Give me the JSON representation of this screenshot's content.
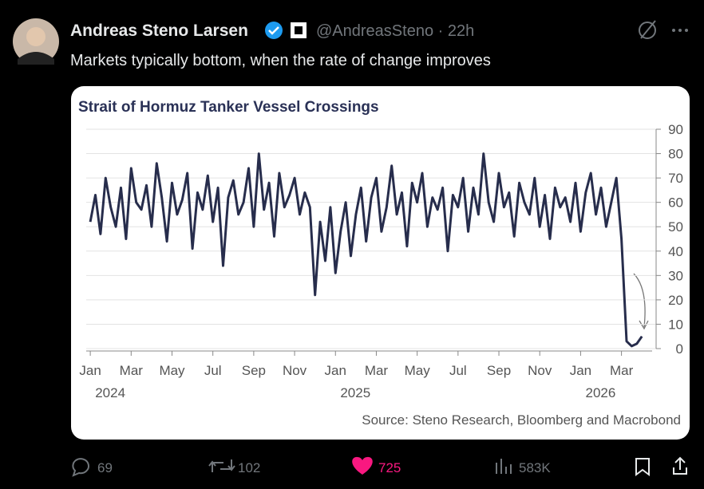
{
  "tweet": {
    "author": "Andreas Steno Larsen",
    "handle_line": "@AndreasSteno · 22h",
    "text": "Markets typically bottom, when the rate of change improves",
    "replies": "69",
    "retweets": "102",
    "likes": "725",
    "views": "583K"
  },
  "chart_data": {
    "type": "line",
    "title": "Strait of Hormuz Tanker Vessel Crossings",
    "source": "Source: Steno Research, Bloomberg and Macrobond",
    "color": "#272d4c",
    "x": [
      0,
      0.25,
      0.5,
      0.75,
      1,
      1.25,
      1.5,
      1.75,
      2,
      2.25,
      2.5,
      2.75,
      3,
      3.25,
      3.5,
      3.75,
      4,
      4.25,
      4.5,
      4.75,
      5,
      5.25,
      5.5,
      5.75,
      6,
      6.25,
      6.5,
      6.75,
      7,
      7.25,
      7.5,
      7.75,
      8,
      8.25,
      8.5,
      8.75,
      9,
      9.25,
      9.5,
      9.75,
      10,
      10.25,
      10.5,
      10.75,
      11,
      11.25,
      11.5,
      11.75,
      12,
      12.25,
      12.5,
      12.75,
      13,
      13.25,
      13.5,
      13.75,
      14,
      14.25,
      14.5,
      14.75,
      15,
      15.25,
      15.5,
      15.75,
      16,
      16.25,
      16.5,
      16.75,
      17,
      17.25,
      17.5,
      17.75,
      18,
      18.25,
      18.5,
      18.75,
      19,
      19.25,
      19.5,
      19.75,
      20,
      20.25,
      20.5,
      20.75,
      21,
      21.25,
      21.5,
      21.75,
      22,
      22.25,
      22.5,
      22.75,
      23,
      23.25,
      23.5,
      23.75,
      24,
      24.25,
      24.5,
      24.75,
      25,
      25.25,
      25.5,
      25.75,
      26,
      26.25,
      26.5,
      26.75,
      27
    ],
    "values": [
      52,
      63,
      47,
      70,
      58,
      50,
      66,
      45,
      74,
      60,
      57,
      67,
      50,
      76,
      62,
      44,
      68,
      55,
      61,
      72,
      41,
      64,
      57,
      71,
      52,
      66,
      34,
      62,
      69,
      55,
      60,
      74,
      50,
      80,
      57,
      68,
      46,
      72,
      58,
      63,
      70,
      55,
      64,
      58,
      22,
      52,
      36,
      58,
      31,
      48,
      60,
      38,
      55,
      66,
      44,
      62,
      70,
      48,
      58,
      75,
      55,
      64,
      42,
      68,
      60,
      72,
      50,
      62,
      57,
      66,
      40,
      63,
      58,
      70,
      48,
      66,
      55,
      80,
      60,
      52,
      72,
      58,
      64,
      46,
      68,
      60,
      55,
      70,
      50,
      63,
      45,
      66,
      58,
      62,
      52,
      68,
      48,
      64,
      72,
      55,
      66,
      50,
      60,
      70,
      45,
      3,
      1,
      2,
      5
    ],
    "xlim": [
      -0.2,
      27.5
    ],
    "ylim": [
      0,
      90
    ],
    "xticks": [
      {
        "value": 0,
        "label": "Jan"
      },
      {
        "value": 2,
        "label": "Mar"
      },
      {
        "value": 4,
        "label": "May"
      },
      {
        "value": 6,
        "label": "Jul"
      },
      {
        "value": 8,
        "label": "Sep"
      },
      {
        "value": 10,
        "label": "Nov"
      },
      {
        "value": 12,
        "label": "Jan"
      },
      {
        "value": 14,
        "label": "Mar"
      },
      {
        "value": 16,
        "label": "May"
      },
      {
        "value": 18,
        "label": "Jul"
      },
      {
        "value": 20,
        "label": "Sep"
      },
      {
        "value": 22,
        "label": "Nov"
      },
      {
        "value": 24,
        "label": "Jan"
      },
      {
        "value": 26,
        "label": "Mar"
      }
    ],
    "year_labels": [
      {
        "value": 0,
        "label": "2024"
      },
      {
        "value": 12,
        "label": "2025"
      },
      {
        "value": 24,
        "label": "2026"
      }
    ],
    "yticks": [
      0,
      10,
      20,
      30,
      40,
      50,
      60,
      70,
      80,
      90
    ],
    "grid": true
  }
}
